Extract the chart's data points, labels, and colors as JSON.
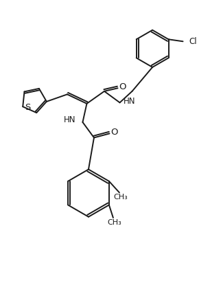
{
  "bg_color": "#ffffff",
  "line_color": "#1a1a1a",
  "line_width": 1.4,
  "font_size": 8.5,
  "figsize": [
    3.06,
    4.12
  ],
  "dpi": 100,
  "xlim": [
    0,
    10
  ],
  "ylim": [
    0,
    13
  ]
}
